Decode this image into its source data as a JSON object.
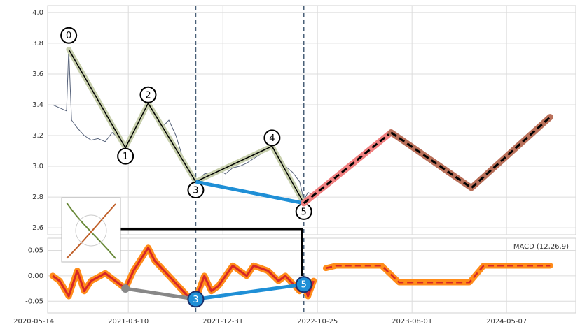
{
  "chart_data": [
    {
      "type": "line",
      "ylim": [
        2.555,
        4.045
      ],
      "yticks": [
        2.6,
        2.8,
        {
          "value": 3,
          "label": "3.0"
        },
        3.2,
        3.4,
        3.6,
        3.8,
        {
          "value": 4,
          "label": "4.0"
        }
      ],
      "xlim": [
        "2020-06-27",
        "2024-11-28"
      ],
      "xticks": [
        "2020-05-14",
        "2021-03-10",
        "2021-12-31",
        "2022-10-25",
        "2023-08-01",
        "2024-05-07"
      ],
      "vlines": [
        "2021-10-07",
        "2022-09-12"
      ],
      "grid": true,
      "series": [
        {
          "color": "#56627a",
          "width": 1,
          "x": [
            "2020-07-13",
            "2020-08-04",
            "2020-08-26",
            "2020-09-02",
            "2020-09-11",
            "2020-09-29",
            "2020-10-21",
            "2020-11-12",
            "2020-12-04",
            "2020-12-27",
            "2021-01-18",
            "2021-02-09",
            "2021-03-01",
            "2021-03-26",
            "2021-04-17",
            "2021-05-11",
            "2021-05-31",
            "2021-06-22",
            "2021-07-15",
            "2021-08-06",
            "2021-08-28",
            "2021-09-19",
            "2021-10-07",
            "2021-11-03",
            "2021-11-25",
            "2021-12-17",
            "2022-01-08",
            "2022-01-31",
            "2022-02-22",
            "2022-03-16",
            "2022-04-07",
            "2022-04-30",
            "2022-05-22",
            "2022-06-04",
            "2022-06-24",
            "2022-07-16",
            "2022-08-08",
            "2022-08-30",
            "2022-09-12",
            "2022-09-25",
            "2022-10-13"
          ],
          "values": [
            3.4,
            3.38,
            3.36,
            3.76,
            3.3,
            3.25,
            3.2,
            3.17,
            3.18,
            3.16,
            3.22,
            3.18,
            3.12,
            3.22,
            3.3,
            3.41,
            3.33,
            3.25,
            3.3,
            3.2,
            3.05,
            2.95,
            2.9,
            2.95,
            2.96,
            2.98,
            2.95,
            2.99,
            3.0,
            3.02,
            3.05,
            3.08,
            3.12,
            3.13,
            3.05,
            3.0,
            2.96,
            2.9,
            2.78,
            2.83,
            2.81
          ]
        },
        {
          "color": "#000000",
          "width": 1.5,
          "halo": "#c8d0ae",
          "x": [
            "2020-09-02",
            "2021-03-01",
            "2021-05-11",
            "2021-10-07",
            "2022-06-04",
            "2022-09-12"
          ],
          "values": [
            3.76,
            3.12,
            3.41,
            2.9,
            3.13,
            2.76
          ],
          "labels": [
            "0",
            "1",
            "2",
            "3",
            "4",
            "5"
          ]
        },
        {
          "color": "#1f8fd6",
          "width": 5,
          "x": [
            "2021-10-07",
            "2022-09-12"
          ],
          "values": [
            2.9,
            2.76
          ]
        },
        {
          "color": "#000000",
          "width": 3,
          "dash": true,
          "halo": "#f08080",
          "x": [
            "2022-09-12",
            "2023-05-31"
          ],
          "values": [
            2.76,
            3.22
          ]
        },
        {
          "color": "#000000",
          "width": 3,
          "dash": true,
          "halo": "#b9705a",
          "x": [
            "2023-05-31",
            "2024-01-24",
            "2024-09-13"
          ],
          "values": [
            3.22,
            2.86,
            3.32
          ]
        }
      ]
    },
    {
      "type": "line",
      "ylim": [
        -0.073,
        0.074
      ],
      "yticks": [
        {
          "value": -0.05,
          "label": "-0.05"
        },
        {
          "value": 0,
          "label": "0.00"
        },
        0.05
      ],
      "xlim": [
        "2020-06-27",
        "2024-11-28"
      ],
      "xticks": [
        "2020-05-14",
        "2021-03-10",
        "2021-12-31",
        "2022-10-25",
        "2023-08-01",
        "2024-05-07"
      ],
      "vlines": [
        "2021-10-07",
        "2022-09-12"
      ],
      "grid": true,
      "annotation": "MACD (12,26,9)",
      "series": [
        {
          "color": "#d62728",
          "width": 3,
          "halo": "#ff8c1a",
          "x": [
            "2020-07-13",
            "2020-08-04",
            "2020-09-02",
            "2020-09-29",
            "2020-10-21",
            "2020-11-12",
            "2020-12-27",
            "2021-03-01",
            "2021-03-26",
            "2021-05-11",
            "2021-05-31",
            "2021-07-15",
            "2021-08-28",
            "2021-09-19",
            "2021-10-07",
            "2021-11-03",
            "2021-11-25",
            "2021-12-17",
            "2022-01-31",
            "2022-03-16",
            "2022-04-07",
            "2022-05-22",
            "2022-06-24",
            "2022-07-16",
            "2022-08-30",
            "2022-09-12",
            "2022-09-25",
            "2022-10-13"
          ],
          "values": [
            0,
            -0.01,
            -0.04,
            0.01,
            -0.03,
            -0.01,
            0.005,
            -0.025,
            0.01,
            0.055,
            0.03,
            0,
            -0.03,
            -0.045,
            -0.046,
            0,
            -0.03,
            -0.02,
            0.02,
            0,
            0.02,
            0.01,
            -0.01,
            0,
            -0.03,
            -0.017,
            -0.04,
            -0.01
          ]
        },
        {
          "color": "#d62728",
          "width": 2.5,
          "dash": true,
          "halo": "#ff8c1a",
          "x": [
            "2022-11-19",
            "2022-12-20",
            "2023-05-03",
            "2023-06-24",
            "2024-01-18",
            "2024-02-29",
            "2024-09-13"
          ],
          "values": [
            0.015,
            0.02,
            0.02,
            -0.013,
            -0.013,
            0.02,
            0.02
          ]
        },
        {
          "color": "#888888",
          "width": 5,
          "marker": true,
          "x": [
            "2021-03-01",
            "2021-10-07"
          ],
          "values": [
            -0.025,
            -0.046
          ]
        },
        {
          "color": "#1f8fd6",
          "width": 5,
          "x": [
            "2021-10-07",
            "2022-09-12"
          ],
          "values": [
            -0.046,
            -0.017
          ],
          "labels": [
            "3",
            "5"
          ]
        }
      ]
    }
  ]
}
